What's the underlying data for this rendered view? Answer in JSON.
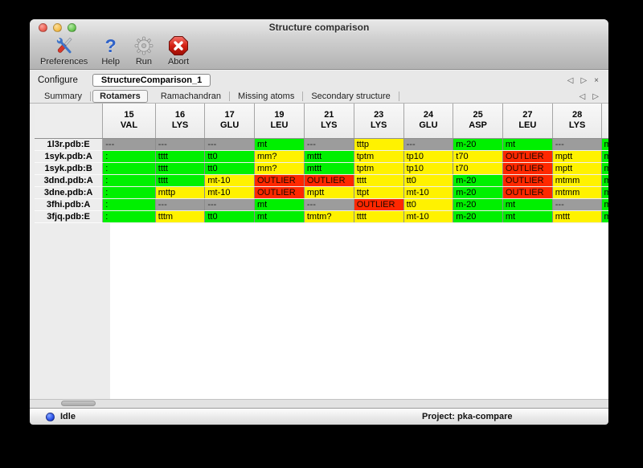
{
  "window": {
    "title": "Structure comparison"
  },
  "toolbar": {
    "preferences": "Preferences",
    "help": "Help",
    "run": "Run",
    "abort": "Abort"
  },
  "configure": {
    "label": "Configure",
    "name": "StructureComparison_1"
  },
  "nav_icons": {
    "back": "◁",
    "forward": "▷",
    "close": "×"
  },
  "tabs": {
    "items": [
      {
        "label": "Summary",
        "selected": false
      },
      {
        "label": "Rotamers",
        "selected": true
      },
      {
        "label": "Ramachandran",
        "selected": false
      },
      {
        "label": "Missing atoms",
        "selected": false
      },
      {
        "label": "Secondary structure",
        "selected": false
      }
    ]
  },
  "colors": {
    "rotamer_ok": "#00f000",
    "rotamer_warn": "#fff200",
    "rotamer_outlier": "#ff2800",
    "not_present": "#9c9c9c"
  },
  "table": {
    "columns": [
      {
        "num": "15",
        "res": "VAL"
      },
      {
        "num": "16",
        "res": "LYS"
      },
      {
        "num": "17",
        "res": "GLU"
      },
      {
        "num": "19",
        "res": "LEU"
      },
      {
        "num": "21",
        "res": "LYS"
      },
      {
        "num": "23",
        "res": "LYS"
      },
      {
        "num": "24",
        "res": "GLU"
      },
      {
        "num": "25",
        "res": "ASP"
      },
      {
        "num": "27",
        "res": "LEU"
      },
      {
        "num": "28",
        "res": "LYS"
      },
      {
        "num": "",
        "res": "",
        "partial": true
      }
    ],
    "rows": [
      {
        "label": "1l3r.pdb:E",
        "cells": [
          {
            "v": "---",
            "c": "x"
          },
          {
            "v": "---",
            "c": "x"
          },
          {
            "v": "---",
            "c": "x"
          },
          {
            "v": "mt",
            "c": "g"
          },
          {
            "v": "---",
            "c": "x"
          },
          {
            "v": "tttp",
            "c": "y"
          },
          {
            "v": "---",
            "c": "x"
          },
          {
            "v": "m-20",
            "c": "g"
          },
          {
            "v": "mt",
            "c": "g"
          },
          {
            "v": "---",
            "c": "x"
          },
          {
            "v": "m",
            "c": "g",
            "partial": true
          }
        ]
      },
      {
        "label": "1syk.pdb:A",
        "cells": [
          {
            "v": ":",
            "c": "g"
          },
          {
            "v": "tttt",
            "c": "g"
          },
          {
            "v": "tt0",
            "c": "g"
          },
          {
            "v": "mm?",
            "c": "y"
          },
          {
            "v": "mttt",
            "c": "g"
          },
          {
            "v": "tptm",
            "c": "y"
          },
          {
            "v": "tp10",
            "c": "y"
          },
          {
            "v": "t70",
            "c": "y"
          },
          {
            "v": "OUTLIER",
            "c": "r"
          },
          {
            "v": "mptt",
            "c": "y"
          },
          {
            "v": "m",
            "c": "g",
            "partial": true
          }
        ]
      },
      {
        "label": "1syk.pdb:B",
        "cells": [
          {
            "v": ":",
            "c": "g"
          },
          {
            "v": "tttt",
            "c": "g"
          },
          {
            "v": "tt0",
            "c": "g"
          },
          {
            "v": "mm?",
            "c": "y"
          },
          {
            "v": "mttt",
            "c": "g"
          },
          {
            "v": "tptm",
            "c": "y"
          },
          {
            "v": "tp10",
            "c": "y"
          },
          {
            "v": "t70",
            "c": "y"
          },
          {
            "v": "OUTLIER",
            "c": "r"
          },
          {
            "v": "mptt",
            "c": "y"
          },
          {
            "v": "m",
            "c": "g",
            "partial": true
          }
        ]
      },
      {
        "label": "3dnd.pdb:A",
        "cells": [
          {
            "v": ":",
            "c": "g"
          },
          {
            "v": "tttt",
            "c": "g"
          },
          {
            "v": "mt-10",
            "c": "y"
          },
          {
            "v": "OUTLIER",
            "c": "r"
          },
          {
            "v": "OUTLIER",
            "c": "r"
          },
          {
            "v": "tttt",
            "c": "y"
          },
          {
            "v": "tt0",
            "c": "y"
          },
          {
            "v": "m-20",
            "c": "g"
          },
          {
            "v": "OUTLIER",
            "c": "r"
          },
          {
            "v": "mtmm",
            "c": "y"
          },
          {
            "v": "m",
            "c": "g",
            "partial": true
          }
        ]
      },
      {
        "label": "3dne.pdb:A",
        "cells": [
          {
            "v": ":",
            "c": "g"
          },
          {
            "v": "mttp",
            "c": "y"
          },
          {
            "v": "mt-10",
            "c": "y"
          },
          {
            "v": "OUTLIER",
            "c": "r"
          },
          {
            "v": "mptt",
            "c": "y"
          },
          {
            "v": "ttpt",
            "c": "y"
          },
          {
            "v": "mt-10",
            "c": "y"
          },
          {
            "v": "m-20",
            "c": "g"
          },
          {
            "v": "OUTLIER",
            "c": "r"
          },
          {
            "v": "mtmm",
            "c": "y"
          },
          {
            "v": "m",
            "c": "g",
            "partial": true
          }
        ]
      },
      {
        "label": "3fhi.pdb:A",
        "cells": [
          {
            "v": ":",
            "c": "g"
          },
          {
            "v": "---",
            "c": "x"
          },
          {
            "v": "---",
            "c": "x"
          },
          {
            "v": "mt",
            "c": "g"
          },
          {
            "v": "---",
            "c": "x"
          },
          {
            "v": "OUTLIER",
            "c": "r"
          },
          {
            "v": "tt0",
            "c": "y"
          },
          {
            "v": "m-20",
            "c": "g"
          },
          {
            "v": "mt",
            "c": "g"
          },
          {
            "v": "---",
            "c": "x"
          },
          {
            "v": "m",
            "c": "g",
            "partial": true
          }
        ]
      },
      {
        "label": "3fjq.pdb:E",
        "cells": [
          {
            "v": ":",
            "c": "g"
          },
          {
            "v": "tttm",
            "c": "y"
          },
          {
            "v": "tt0",
            "c": "g"
          },
          {
            "v": "mt",
            "c": "g"
          },
          {
            "v": "tmtm?",
            "c": "y"
          },
          {
            "v": "tttt",
            "c": "y"
          },
          {
            "v": "mt-10",
            "c": "y"
          },
          {
            "v": "m-20",
            "c": "g"
          },
          {
            "v": "mt",
            "c": "g"
          },
          {
            "v": "mttt",
            "c": "y"
          },
          {
            "v": "m",
            "c": "g",
            "partial": true
          }
        ]
      }
    ]
  },
  "status": {
    "state": "Idle",
    "project": "Project: pka-compare"
  }
}
